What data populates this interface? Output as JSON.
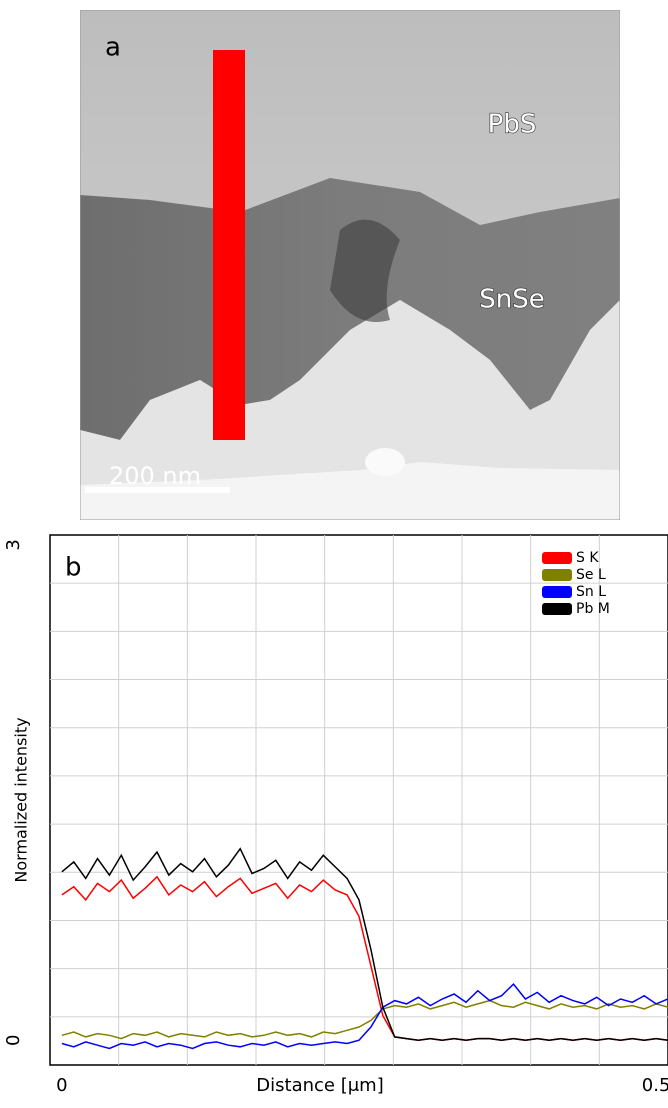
{
  "panel_a": {
    "label": "a",
    "layers": [
      "PbS",
      "SnSe"
    ],
    "scale_bar": "200 nm"
  },
  "chart_data": {
    "type": "line",
    "panel_label": "b",
    "x_label": "Distance [μm]",
    "y_label": "Normalized intensity",
    "x": [
      0,
      0.01,
      0.02,
      0.03,
      0.04,
      0.05,
      0.06,
      0.07,
      0.08,
      0.09,
      0.1,
      0.11,
      0.12,
      0.13,
      0.14,
      0.15,
      0.16,
      0.17,
      0.18,
      0.19,
      0.2,
      0.21,
      0.22,
      0.23,
      0.24,
      0.25,
      0.26,
      0.27,
      0.28,
      0.29,
      0.3,
      0.31,
      0.32,
      0.33,
      0.34,
      0.35,
      0.36,
      0.37,
      0.38,
      0.39,
      0.4,
      0.41,
      0.42,
      0.43,
      0.44,
      0.45,
      0.46,
      0.47,
      0.48,
      0.49,
      0.5,
      0.51
    ],
    "series": [
      {
        "name": "S K",
        "color": "#ff0000",
        "values": [
          0.88,
          0.93,
          0.85,
          0.95,
          0.9,
          0.97,
          0.86,
          0.92,
          0.99,
          0.88,
          0.94,
          0.9,
          0.96,
          0.87,
          0.93,
          0.98,
          0.89,
          0.92,
          0.95,
          0.86,
          0.94,
          0.9,
          0.97,
          0.91,
          0.88,
          0.75,
          0.45,
          0.15,
          0.02,
          0.01,
          0.0,
          0.01,
          0.0,
          0.01,
          0.0,
          0.01,
          0.01,
          0.0,
          0.01,
          0.0,
          0.01,
          0.0,
          0.01,
          0.0,
          0.01,
          0.0,
          0.01,
          0.0,
          0.01,
          0.0,
          0.01,
          0.0
        ]
      },
      {
        "name": "Se L",
        "color": "#808000",
        "values": [
          0.03,
          0.05,
          0.02,
          0.04,
          0.03,
          0.01,
          0.04,
          0.03,
          0.05,
          0.02,
          0.04,
          0.03,
          0.02,
          0.05,
          0.03,
          0.04,
          0.02,
          0.03,
          0.05,
          0.03,
          0.04,
          0.02,
          0.05,
          0.04,
          0.06,
          0.08,
          0.12,
          0.19,
          0.21,
          0.2,
          0.22,
          0.19,
          0.21,
          0.23,
          0.2,
          0.22,
          0.24,
          0.21,
          0.2,
          0.23,
          0.21,
          0.19,
          0.22,
          0.2,
          0.21,
          0.19,
          0.22,
          0.2,
          0.21,
          0.19,
          0.22,
          0.2
        ]
      },
      {
        "name": "Sn L",
        "color": "#0000ff",
        "values": [
          -0.02,
          -0.04,
          -0.01,
          -0.03,
          -0.05,
          -0.02,
          -0.03,
          -0.01,
          -0.04,
          -0.02,
          -0.03,
          -0.05,
          -0.02,
          -0.01,
          -0.03,
          -0.04,
          -0.02,
          -0.03,
          -0.01,
          -0.04,
          -0.02,
          -0.03,
          -0.02,
          -0.01,
          -0.02,
          0.0,
          0.08,
          0.2,
          0.24,
          0.22,
          0.26,
          0.21,
          0.25,
          0.28,
          0.23,
          0.3,
          0.24,
          0.27,
          0.34,
          0.25,
          0.29,
          0.23,
          0.27,
          0.24,
          0.22,
          0.26,
          0.21,
          0.25,
          0.23,
          0.27,
          0.22,
          0.25
        ]
      },
      {
        "name": "Pb M",
        "color": "#000000",
        "values": [
          1.02,
          1.08,
          0.98,
          1.1,
          1.0,
          1.12,
          0.97,
          1.05,
          1.14,
          1.0,
          1.07,
          1.02,
          1.1,
          0.99,
          1.06,
          1.16,
          1.01,
          1.04,
          1.09,
          0.98,
          1.08,
          1.03,
          1.12,
          1.05,
          0.98,
          0.85,
          0.55,
          0.2,
          0.02,
          0.01,
          0.0,
          0.01,
          0.0,
          0.01,
          0.0,
          0.01,
          0.01,
          0.0,
          0.01,
          0.0,
          0.01,
          0.0,
          0.01,
          0.0,
          0.01,
          0.0,
          0.01,
          0.0,
          0.01,
          0.0,
          0.01,
          0.0
        ]
      }
    ],
    "xlim": [
      -0.01,
      0.51
    ],
    "ylim": [
      -0.15,
      3.06
    ],
    "xticks": [
      0,
      0.5
    ],
    "yticks": [
      0,
      3
    ],
    "grid": true,
    "grid_divisions": {
      "x": 9,
      "y": 11
    },
    "legend": "upper right"
  }
}
